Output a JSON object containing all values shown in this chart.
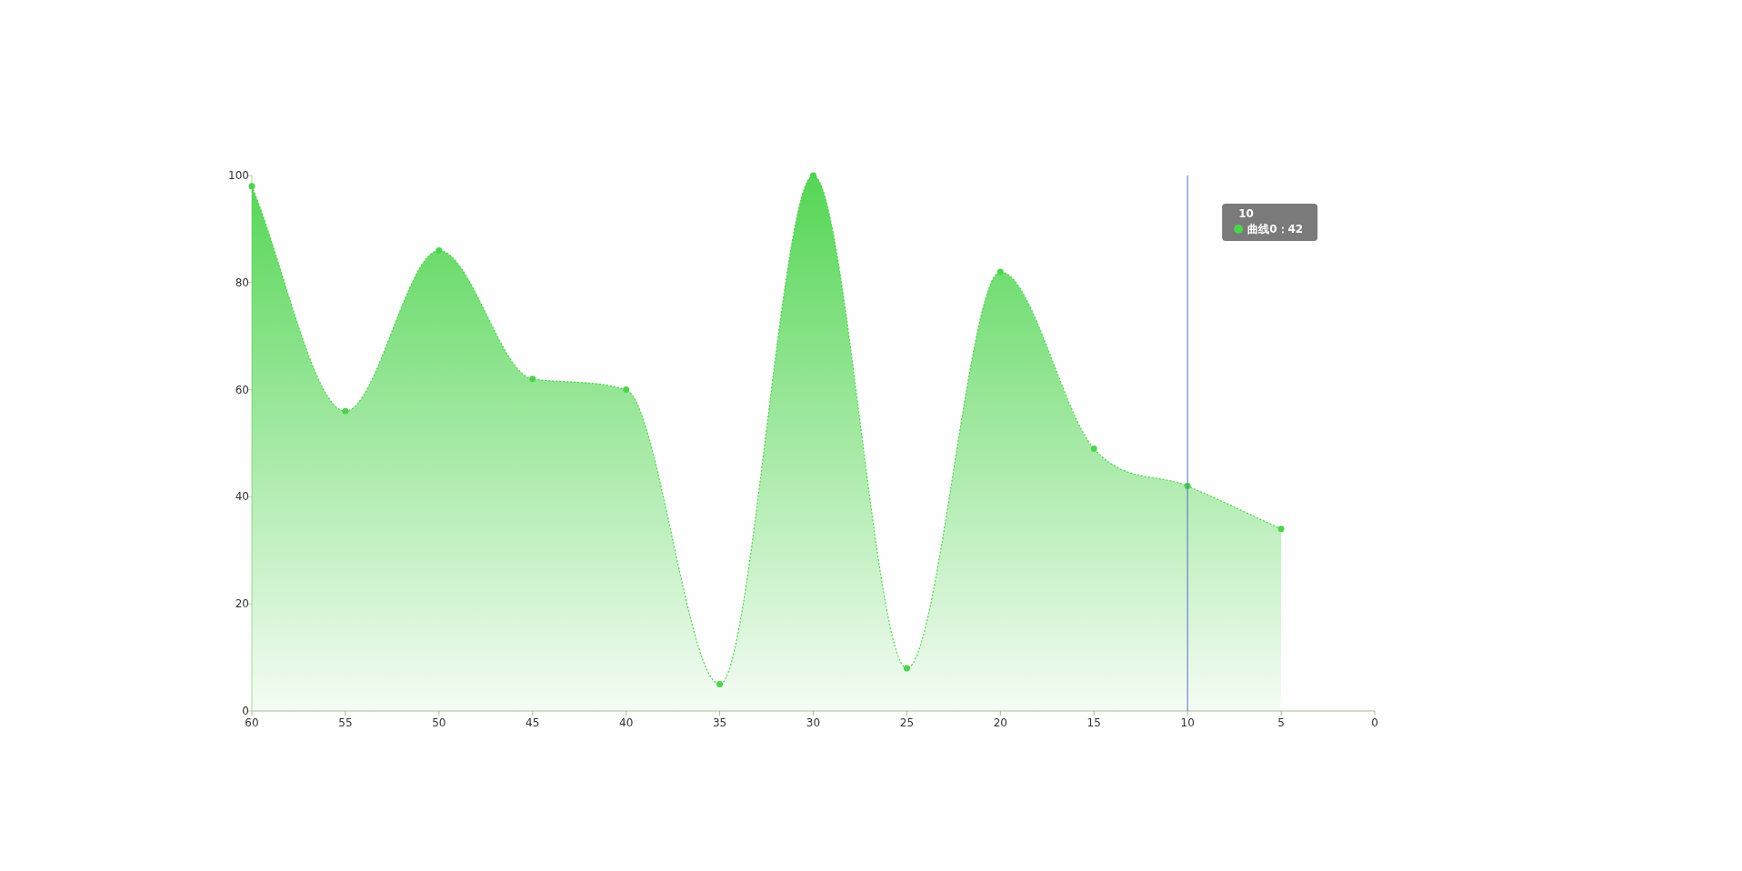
{
  "chart_data": {
    "type": "area",
    "x": [
      60,
      55,
      50,
      45,
      40,
      35,
      30,
      25,
      20,
      15,
      10,
      5
    ],
    "series": [
      {
        "color": "#4cd44c",
        "values": [
          98,
          56,
          86,
          62,
          60,
          5,
          100,
          8,
          82,
          49,
          42,
          34
        ]
      }
    ],
    "xlim": [
      60,
      0
    ],
    "xticks": [
      60,
      55,
      50,
      45,
      40,
      35,
      30,
      25,
      20,
      15,
      10,
      5,
      0
    ],
    "ylim": [
      0,
      100
    ],
    "yticks": [
      0,
      20,
      40,
      60,
      80,
      100
    ],
    "marker": "circle",
    "line_style": "dotted",
    "grid": false,
    "ref_lines": [
      {
        "axis": "x",
        "value": 10,
        "color": "#5470c6"
      }
    ],
    "annotations": [
      "10",
      "曲线0：42"
    ]
  }
}
